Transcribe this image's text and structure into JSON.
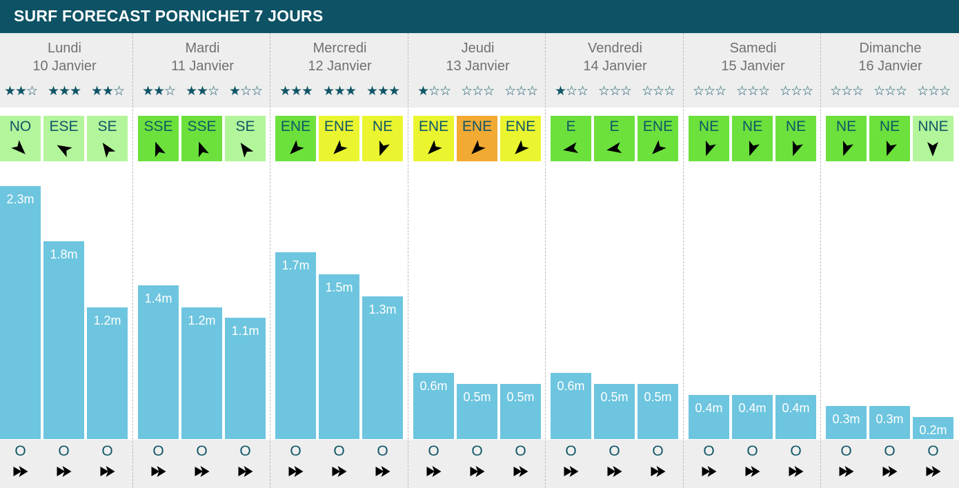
{
  "title": "SURF FORECAST PORNICHET 7 JOURS",
  "colors": {
    "title_bg": "#0d5265",
    "bar": "#6dc5df",
    "text_dark": "#0f5566",
    "wind_light": "#b3f59a",
    "wind_green": "#6ce13c",
    "wind_yellow": "#eaf52f",
    "wind_orange": "#f2aa33"
  },
  "chart_data": {
    "type": "bar",
    "unit": "m",
    "days": [
      {
        "name": "Lundi",
        "date": "10 Janvier"
      },
      {
        "name": "Mardi",
        "date": "11 Janvier"
      },
      {
        "name": "Mercredi",
        "date": "12 Janvier"
      },
      {
        "name": "Jeudi",
        "date": "13 Janvier"
      },
      {
        "name": "Vendredi",
        "date": "14 Janvier"
      },
      {
        "name": "Samedi",
        "date": "15 Janvier"
      },
      {
        "name": "Dimanche",
        "date": "16 Janvier"
      }
    ],
    "values": [
      2.3,
      1.8,
      1.2,
      1.4,
      1.2,
      1.1,
      1.7,
      1.5,
      1.3,
      0.6,
      0.5,
      0.5,
      0.6,
      0.5,
      0.5,
      0.4,
      0.4,
      0.4,
      0.3,
      0.3,
      0.2
    ],
    "labels": [
      "2.3m",
      "1.8m",
      "1.2m",
      "1.4m",
      "1.2m",
      "1.1m",
      "1.7m",
      "1.5m",
      "1.3m",
      "0.6m",
      "0.5m",
      "0.5m",
      "0.6m",
      "0.5m",
      "0.5m",
      "0.4m",
      "0.4m",
      "0.4m",
      "0.3m",
      "0.3m",
      "0.2m"
    ],
    "ylim": [
      0,
      2.3
    ],
    "stars": [
      2,
      3,
      2,
      2,
      2,
      1,
      3,
      3,
      3,
      1,
      0,
      0,
      1,
      0,
      0,
      0,
      0,
      0,
      0,
      0,
      0
    ],
    "star_glyphs": {
      "filled": "★",
      "empty": "☆"
    },
    "wind": [
      {
        "dir": "NO",
        "angle": 135,
        "color": "light"
      },
      {
        "dir": "ESE",
        "angle": 300,
        "color": "light"
      },
      {
        "dir": "SE",
        "angle": 325,
        "color": "light"
      },
      {
        "dir": "SSE",
        "angle": 340,
        "color": "green"
      },
      {
        "dir": "SSE",
        "angle": 340,
        "color": "green"
      },
      {
        "dir": "SE",
        "angle": 325,
        "color": "light"
      },
      {
        "dir": "ENE",
        "angle": 225,
        "color": "green"
      },
      {
        "dir": "ENE",
        "angle": 225,
        "color": "yellow"
      },
      {
        "dir": "NE",
        "angle": 200,
        "color": "yellow"
      },
      {
        "dir": "ENE",
        "angle": 225,
        "color": "yellow"
      },
      {
        "dir": "ENE",
        "angle": 225,
        "color": "orange"
      },
      {
        "dir": "ENE",
        "angle": 225,
        "color": "yellow"
      },
      {
        "dir": "E",
        "angle": 260,
        "color": "green"
      },
      {
        "dir": "E",
        "angle": 260,
        "color": "green"
      },
      {
        "dir": "ENE",
        "angle": 225,
        "color": "green"
      },
      {
        "dir": "NE",
        "angle": 200,
        "color": "green"
      },
      {
        "dir": "NE",
        "angle": 200,
        "color": "green"
      },
      {
        "dir": "NE",
        "angle": 200,
        "color": "green"
      },
      {
        "dir": "NE",
        "angle": 200,
        "color": "green"
      },
      {
        "dir": "NE",
        "angle": 200,
        "color": "green"
      },
      {
        "dir": "NNE",
        "angle": 180,
        "color": "light"
      }
    ],
    "swell_dir": [
      "O",
      "O",
      "O",
      "O",
      "O",
      "O",
      "O",
      "O",
      "O",
      "O",
      "O",
      "O",
      "O",
      "O",
      "O",
      "O",
      "O",
      "O",
      "O",
      "O",
      "O"
    ],
    "swell_angle": 90
  }
}
